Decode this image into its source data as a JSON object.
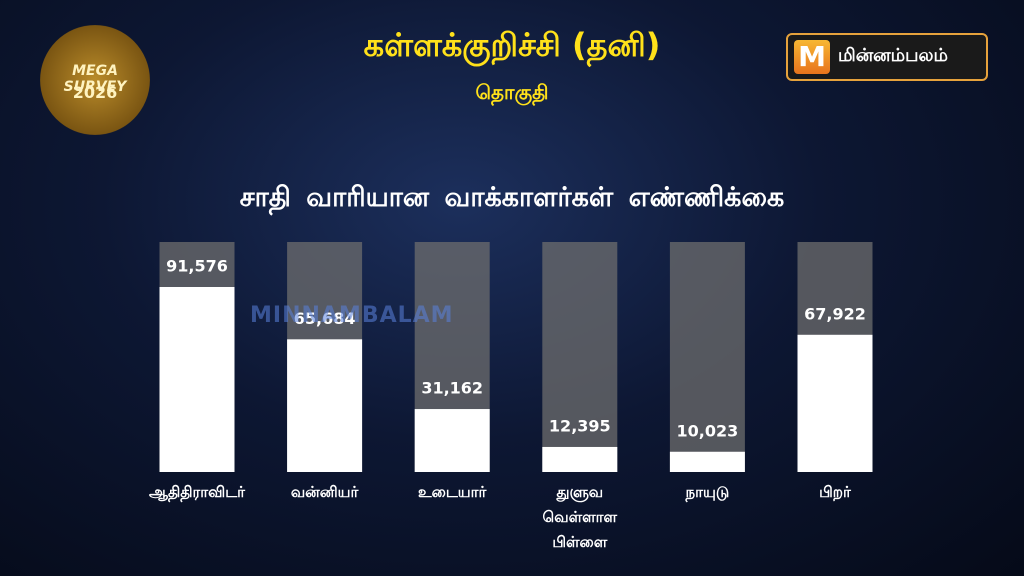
{
  "badge": {
    "line1": "MEGA SURVEY",
    "line2": "2026"
  },
  "logo_text": "மின்னம்பலம்",
  "watermark": "MINNAMBALAM",
  "chart_data": {
    "type": "bar",
    "title": "கள்ளக்குறிச்சி (தனி)",
    "subtitle": "தொகுதி",
    "heading": "சாதி வாரியான வாக்காளர்கள்  எண்ணிக்கை",
    "categories": [
      "ஆதிதிராவிடர்",
      "வன்னியர்",
      "உடையார்",
      "துளுவ வெள்ளாள பிள்ளை",
      "நாயுடு",
      "பிறர்"
    ],
    "values": [
      91576,
      65684,
      31162,
      12395,
      10023,
      67922
    ],
    "value_labels": [
      "91,576",
      "65,684",
      "31,162",
      "12,395",
      "10,023",
      "67,922"
    ],
    "color": "#ffffff"
  }
}
